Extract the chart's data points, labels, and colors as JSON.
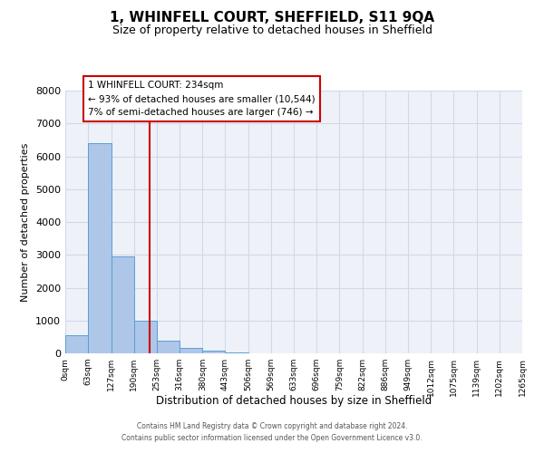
{
  "title": "1, WHINFELL COURT, SHEFFIELD, S11 9QA",
  "subtitle": "Size of property relative to detached houses in Sheffield",
  "bar_values": [
    550,
    6400,
    2950,
    1000,
    380,
    175,
    80,
    40,
    0,
    0,
    0,
    0,
    0,
    0,
    0,
    0,
    0,
    0,
    0,
    0
  ],
  "bin_edges": [
    0,
    63,
    127,
    190,
    253,
    316,
    380,
    443,
    506,
    569,
    633,
    696,
    759,
    822,
    886,
    949,
    1012,
    1075,
    1139,
    1202,
    1265
  ],
  "tick_labels": [
    "0sqm",
    "63sqm",
    "127sqm",
    "190sqm",
    "253sqm",
    "316sqm",
    "380sqm",
    "443sqm",
    "506sqm",
    "569sqm",
    "633sqm",
    "696sqm",
    "759sqm",
    "822sqm",
    "886sqm",
    "949sqm",
    "1012sqm",
    "1075sqm",
    "1139sqm",
    "1202sqm",
    "1265sqm"
  ],
  "bar_color": "#aec6e8",
  "bar_edge_color": "#5a9fd4",
  "vline_x": 234,
  "vline_color": "#cc0000",
  "ylabel": "Number of detached properties",
  "xlabel": "Distribution of detached houses by size in Sheffield",
  "ylim": [
    0,
    8000
  ],
  "yticks": [
    0,
    1000,
    2000,
    3000,
    4000,
    5000,
    6000,
    7000,
    8000
  ],
  "annotation_lines": [
    "1 WHINFELL COURT: 234sqm",
    "← 93% of detached houses are smaller (10,544)",
    "7% of semi-detached houses are larger (746) →"
  ],
  "footer_line1": "Contains HM Land Registry data © Crown copyright and database right 2024.",
  "footer_line2": "Contains public sector information licensed under the Open Government Licence v3.0.",
  "grid_color": "#d0d8e8",
  "bg_color": "#eef2f8"
}
